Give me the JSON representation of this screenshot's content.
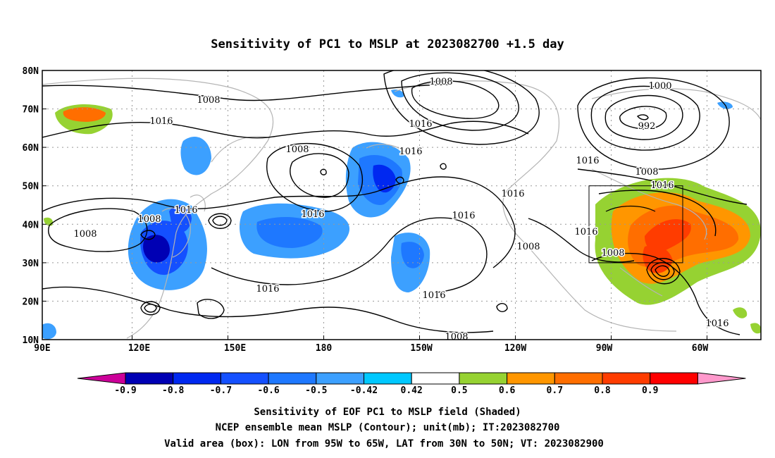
{
  "title": "Sensitivity of PC1 to MSLP at 2023082700 +1.5 day",
  "lat_labels": [
    "80N",
    "70N",
    "60N",
    "50N",
    "40N",
    "30N",
    "20N",
    "10N"
  ],
  "lon_labels": [
    "90E",
    "120E",
    "150E",
    "180",
    "150W",
    "120W",
    "90W",
    "60W"
  ],
  "contour_labels": [
    {
      "text": "1008"
    },
    {
      "text": "1016"
    },
    {
      "text": "1008"
    },
    {
      "text": "1000"
    },
    {
      "text": "992"
    },
    {
      "text": "1016"
    },
    {
      "text": "1008"
    },
    {
      "text": "1016"
    },
    {
      "text": "1016"
    },
    {
      "text": "1008"
    },
    {
      "text": "1016"
    },
    {
      "text": "1016"
    },
    {
      "text": "1016"
    },
    {
      "text": "1008"
    },
    {
      "text": "1016"
    },
    {
      "text": "1008"
    },
    {
      "text": "1016"
    },
    {
      "text": "1008"
    },
    {
      "text": "1016"
    },
    {
      "text": "1016"
    },
    {
      "text": "1008"
    },
    {
      "text": "1016"
    },
    {
      "text": "1008"
    },
    {
      "text": "1016"
    }
  ],
  "colorbar": {
    "labels": [
      "-0.9",
      "-0.8",
      "-0.7",
      "-0.6",
      "-0.5",
      "-0.42",
      "0.42",
      "0.5",
      "0.6",
      "0.7",
      "0.8",
      "0.9"
    ],
    "colors": [
      "#0000b4",
      "#0028f0",
      "#1450ff",
      "#1e78ff",
      "#3ca0ff",
      "#00c8ff",
      "#ffffff",
      "#96d232",
      "#ff9600",
      "#ff6e00",
      "#ff3c00",
      "#ff0000"
    ],
    "low_end_color": "#cc0099",
    "high_end_color": "#ff99cc"
  },
  "caption": [
    "Sensitivity of EOF PC1 to MSLP field (Shaded)",
    "NCEP ensemble mean MSLP (Contour); unit(mb); IT:2023082700",
    "Valid area (box): LON from 95W to 65W, LAT from 30N to 50N; VT: 2023082900"
  ],
  "colors": {
    "coast": "#b4b4b4",
    "contour": "#000000",
    "grid": "#999999"
  }
}
